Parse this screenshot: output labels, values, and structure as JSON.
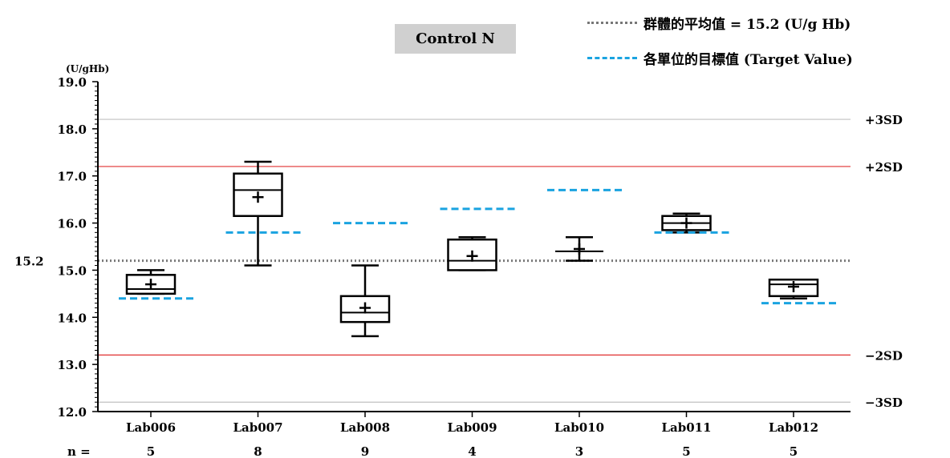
{
  "chart_data": {
    "type": "boxplot",
    "title": "Control N",
    "ylabel": "(U/gHb)",
    "ylim": [
      12.0,
      19.0
    ],
    "yticks": [
      "12.0",
      "13.0",
      "14.0",
      "15.0",
      "16.0",
      "17.0",
      "18.0",
      "19.0"
    ],
    "mean": {
      "value": 15.2,
      "label": "15.2"
    },
    "sd_lines": [
      {
        "label": "+3SD",
        "value": 18.2,
        "color": "#c0c0c0"
      },
      {
        "label": "+2SD",
        "value": 17.2,
        "color": "#e03030"
      },
      {
        "label": "−2SD",
        "value": 13.2,
        "color": "#e03030"
      },
      {
        "label": "−3SD",
        "value": 12.2,
        "color": "#c0c0c0"
      }
    ],
    "legend": {
      "mean_label": "群體的平均值 = 15.2 (U/g Hb)",
      "target_label": "各單位的目標值 (Target Value)",
      "mean_color": "#777777",
      "target_color": "#1aa3e0"
    },
    "n_label": "n =",
    "labs": [
      {
        "name": "Lab006",
        "n": "5",
        "min": 14.5,
        "q1": 14.5,
        "median": 14.6,
        "q3": 14.9,
        "max": 15.0,
        "mean": 14.7,
        "target": 14.4
      },
      {
        "name": "Lab007",
        "n": "8",
        "min": 15.1,
        "q1": 16.15,
        "median": 16.7,
        "q3": 17.05,
        "max": 17.3,
        "mean": 16.55,
        "target": 15.8
      },
      {
        "name": "Lab008",
        "n": "9",
        "min": 13.6,
        "q1": 13.9,
        "median": 14.1,
        "q3": 14.45,
        "max": 15.1,
        "mean": 14.2,
        "target": 16.0
      },
      {
        "name": "Lab009",
        "n": "4",
        "min": 15.0,
        "q1": 15.0,
        "median": 15.2,
        "q3": 15.65,
        "max": 15.7,
        "mean": 15.3,
        "target": 16.3
      },
      {
        "name": "Lab010",
        "n": "3",
        "min": 15.2,
        "q1": 15.4,
        "median": 15.4,
        "q3": 15.4,
        "max": 15.7,
        "mean": 15.45,
        "target": 16.7
      },
      {
        "name": "Lab011",
        "n": "5",
        "min": 15.8,
        "q1": 15.85,
        "median": 16.0,
        "q3": 16.15,
        "max": 16.2,
        "mean": 16.0,
        "target": 15.8
      },
      {
        "name": "Lab012",
        "n": "5",
        "min": 14.4,
        "q1": 14.45,
        "median": 14.7,
        "q3": 14.8,
        "max": 14.8,
        "mean": 14.65,
        "target": 14.3
      }
    ]
  }
}
